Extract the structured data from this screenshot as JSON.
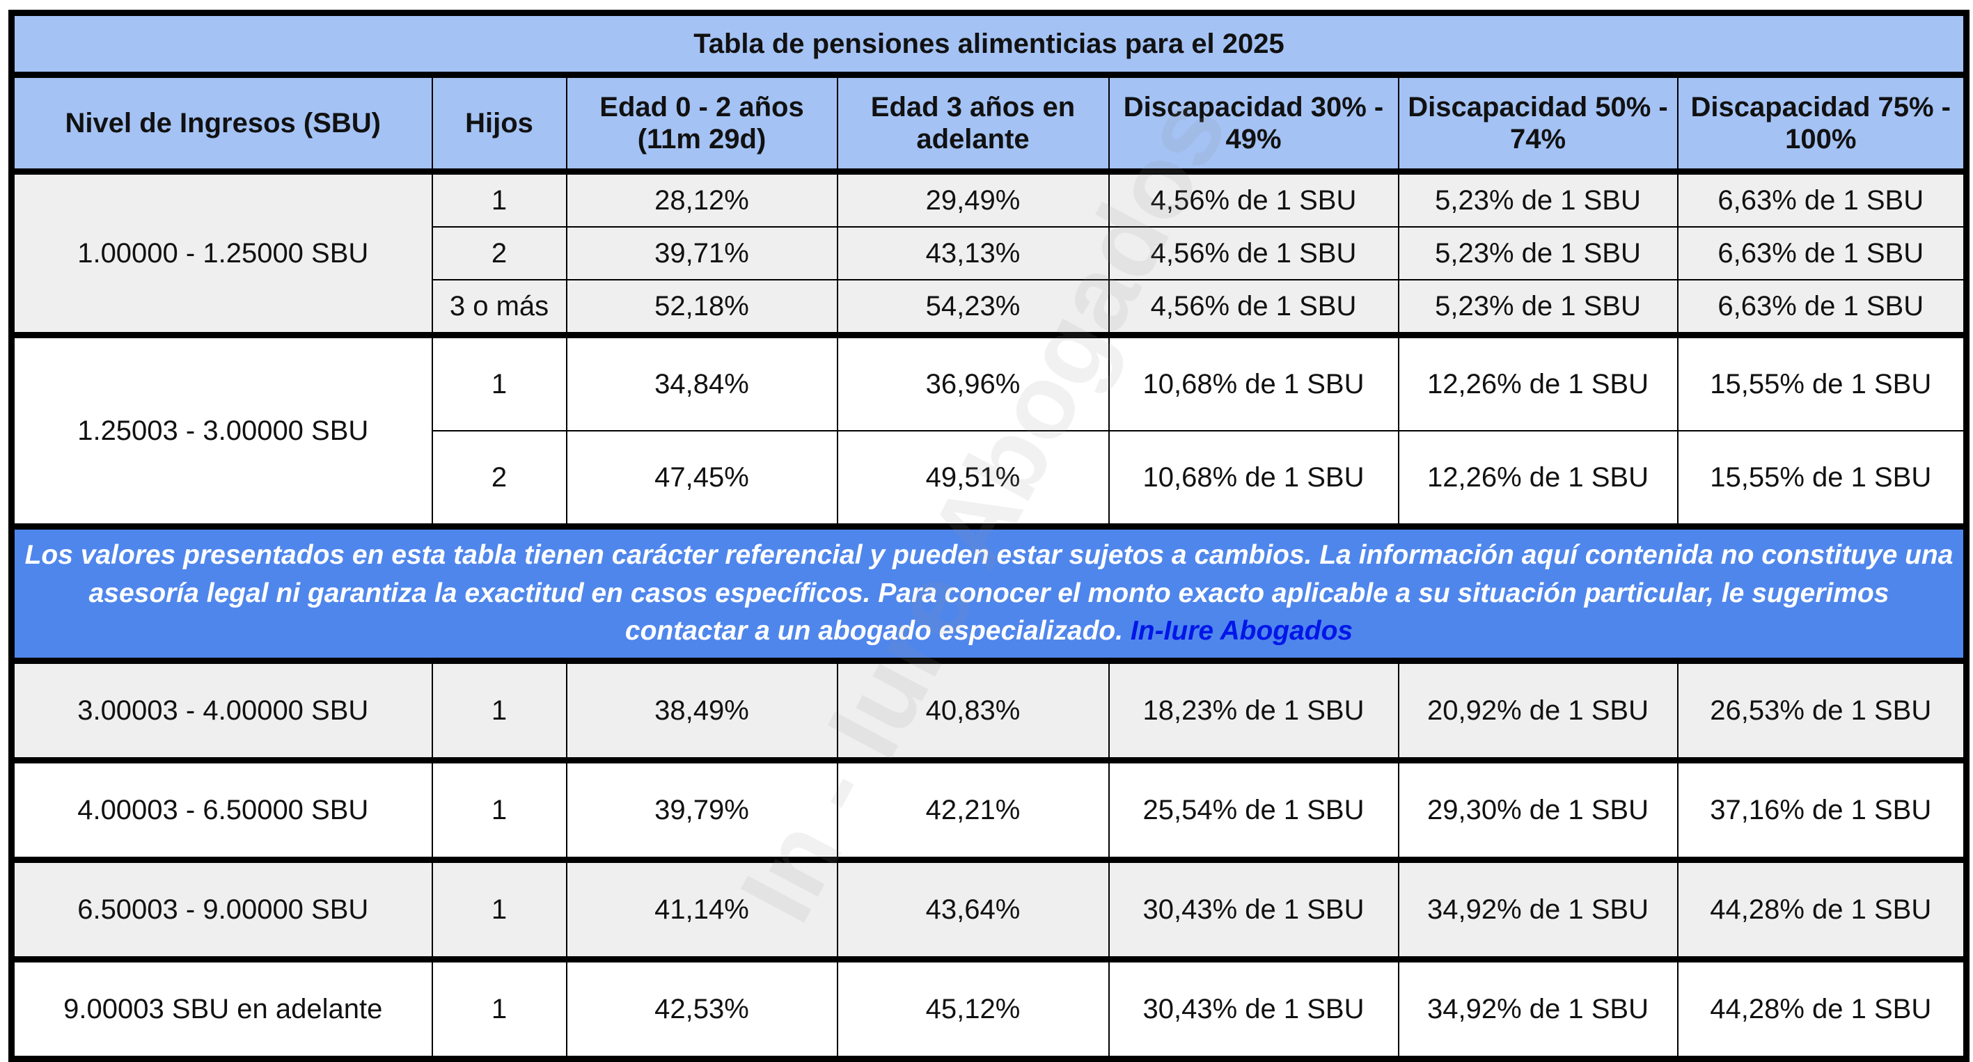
{
  "title": "Tabla de pensiones alimenticias para el 2025",
  "headers": [
    "Nivel de Ingresos (SBU)",
    "Hijos",
    "Edad 0 - 2 años (11m 29d)",
    "Edad 3 años en adelante",
    "Discapacidad 30% - 49%",
    "Discapacidad 50% - 74%",
    "Discapacidad 75% - 100%"
  ],
  "group1": {
    "level": "1.00000 - 1.25000 SBU",
    "rows": [
      [
        "1",
        "28,12%",
        "29,49%",
        "4,56% de 1 SBU",
        "5,23% de 1 SBU",
        "6,63% de 1 SBU"
      ],
      [
        "2",
        "39,71%",
        "43,13%",
        "4,56% de 1 SBU",
        "5,23% de 1 SBU",
        "6,63% de 1 SBU"
      ],
      [
        "3 o más",
        "52,18%",
        "54,23%",
        "4,56% de 1 SBU",
        "5,23% de 1 SBU",
        "6,63% de 1 SBU"
      ]
    ]
  },
  "group2": {
    "level": "1.25003 - 3.00000 SBU",
    "rows": [
      [
        "1",
        "34,84%",
        "36,96%",
        "10,68% de 1 SBU",
        "12,26% de 1 SBU",
        "15,55% de 1 SBU"
      ],
      [
        "2",
        "47,45%",
        "49,51%",
        "10,68% de 1 SBU",
        "12,26% de 1 SBU",
        "15,55% de 1 SBU"
      ]
    ]
  },
  "disclaimer": {
    "text": "Los valores presentados en esta tabla tienen carácter referencial y pueden estar sujetos a cambios. La información aquí contenida no constituye una asesoría legal ni garantiza la exactitud en casos específicos. Para conocer el monto exacto aplicable a su situación particular, le sugerimos contactar a un abogado especializado.",
    "brand": "In-Iure Abogados"
  },
  "rows": [
    [
      "3.00003 - 4.00000 SBU",
      "1",
      "38,49%",
      "40,83%",
      "18,23% de 1 SBU",
      "20,92% de 1 SBU",
      "26,53% de 1 SBU"
    ],
    [
      "4.00003 - 6.50000 SBU",
      "1",
      "39,79%",
      "42,21%",
      "25,54% de 1 SBU",
      "29,30% de 1 SBU",
      "37,16% de 1 SBU"
    ],
    [
      "6.50003 - 9.00000 SBU",
      "1",
      "41,14%",
      "43,64%",
      "30,43% de 1 SBU",
      "34,92% de 1 SBU",
      "44,28% de 1 SBU"
    ],
    [
      "9.00003 SBU en adelante",
      "1",
      "42,53%",
      "45,12%",
      "30,43% de 1 SBU",
      "34,92% de 1 SBU",
      "44,28% de 1 SBU"
    ]
  ],
  "watermark": "In - Iure Abogados",
  "colors": {
    "header": "#a4c2f4",
    "disclaimer": "#4f86ec",
    "brand": "#0016e8",
    "row_alt": "#efefef"
  }
}
